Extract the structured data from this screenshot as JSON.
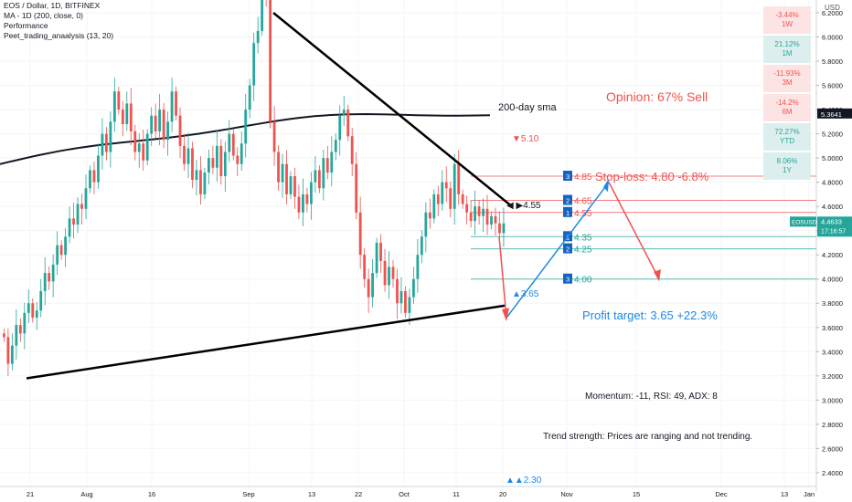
{
  "header": {
    "line1": "EOS / Dollar, 1D, BITFINEX",
    "line2": "MA - 1D (200, close, 0)",
    "line3": "Performance",
    "line4": "Peet_trading_anaalysis (13, 20)"
  },
  "currency": "USD",
  "performance": [
    {
      "value": "-3.44%",
      "period": "1W",
      "color": "#ef5350",
      "bg": "#fde4e4"
    },
    {
      "value": "21.12%",
      "period": "1M",
      "color": "#26a69a",
      "bg": "#dcefee"
    },
    {
      "value": "-11.93%",
      "period": "3M",
      "color": "#ef5350",
      "bg": "#fde4e4"
    },
    {
      "value": "-14.2%",
      "period": "6M",
      "color": "#ef5350",
      "bg": "#fde4e4"
    },
    {
      "value": "72.27%",
      "period": "YTD",
      "color": "#26a69a",
      "bg": "#dcefee"
    },
    {
      "value": "8.06%",
      "period": "1Y",
      "color": "#26a69a",
      "bg": "#dcefee"
    }
  ],
  "annotations": {
    "sma_label": "200-day sma",
    "opinion": "Opinion: 67% Sell",
    "stop_loss": "Stop-loss: 4.80 -6.8%",
    "profit_target": "Profit target: 3.65 +22.3%",
    "momentum": "Momentum: -11, RSI: 49, ADX: 8",
    "trend": "Trend strength: Prices are ranging and not trending.",
    "high_marker": "▼5.10",
    "low_marker_1": "▲3.65",
    "low_marker_2": "▲▲2.30",
    "pointer_label": "◀ ▶4.55"
  },
  "chart_data": {
    "type": "candlestick",
    "symbol": "EOSUSD",
    "last_price": "4.4633",
    "countdown": "17:16:57",
    "sma_value": "5.3641",
    "ylim": [
      2.3,
      6.2
    ],
    "y_ticks": [
      "6.2000",
      "6.0000",
      "5.8000",
      "5.6000",
      "5.4000",
      "5.2000",
      "5.0000",
      "4.8000",
      "4.6000",
      "4.4000",
      "4.2000",
      "4.0000",
      "3.8000",
      "3.6000",
      "3.4000",
      "3.2000",
      "3.0000",
      "2.8000",
      "2.6000",
      "2.4000"
    ],
    "x_ticks": [
      "21",
      "Aug",
      "16",
      "Sep",
      "13",
      "22",
      "Oct",
      "11",
      "20",
      "Nov",
      "15",
      "Dec",
      "13",
      "Jan"
    ],
    "levels": [
      {
        "num": "3",
        "label": "4.85",
        "value": 4.85,
        "color": "#ef5350"
      },
      {
        "num": "2",
        "label": "4.65",
        "value": 4.65,
        "color": "#ef5350"
      },
      {
        "num": "1",
        "label": "4.55",
        "value": 4.55,
        "color": "#ef5350"
      },
      {
        "num": "1",
        "label": "4.35",
        "value": 4.35,
        "color": "#26a69a"
      },
      {
        "num": "2",
        "label": "4.25",
        "value": 4.25,
        "color": "#26a69a"
      },
      {
        "num": "3",
        "label": "4.00",
        "value": 4.0,
        "color": "#26a69a"
      }
    ],
    "closes": [
      3.52,
      3.3,
      3.45,
      3.62,
      3.55,
      3.72,
      3.8,
      3.68,
      3.74,
      3.9,
      4.05,
      3.98,
      4.12,
      4.28,
      4.2,
      4.35,
      4.5,
      4.45,
      4.62,
      4.58,
      4.75,
      4.9,
      4.8,
      5.02,
      5.2,
      5.05,
      5.3,
      5.55,
      5.4,
      5.28,
      5.45,
      5.22,
      5.05,
      5.12,
      4.98,
      5.2,
      5.35,
      5.22,
      5.4,
      5.15,
      5.3,
      5.55,
      5.35,
      5.1,
      4.95,
      5.08,
      4.82,
      4.9,
      4.7,
      4.88,
      5.0,
      4.92,
      5.1,
      4.85,
      5.05,
      5.2,
      5.02,
      4.95,
      5.12,
      5.4,
      5.6,
      5.95,
      6.05,
      6.45,
      6.35,
      5.3,
      5.05,
      4.8,
      4.95,
      4.7,
      4.85,
      4.68,
      4.55,
      4.7,
      4.62,
      4.8,
      4.9,
      4.75,
      5.0,
      4.88,
      5.05,
      5.15,
      5.35,
      5.4,
      5.18,
      4.95,
      4.55,
      4.2,
      4.0,
      3.85,
      4.05,
      4.3,
      4.15,
      3.95,
      4.1,
      4.0,
      3.8,
      3.9,
      3.72,
      3.85,
      4.0,
      4.2,
      4.35,
      4.55,
      4.5,
      4.7,
      4.62,
      4.8,
      4.75,
      4.58,
      4.95,
      4.7,
      4.62,
      4.55,
      4.48,
      4.6,
      4.52,
      4.58,
      4.45,
      4.52,
      4.46,
      4.38,
      4.46
    ]
  }
}
